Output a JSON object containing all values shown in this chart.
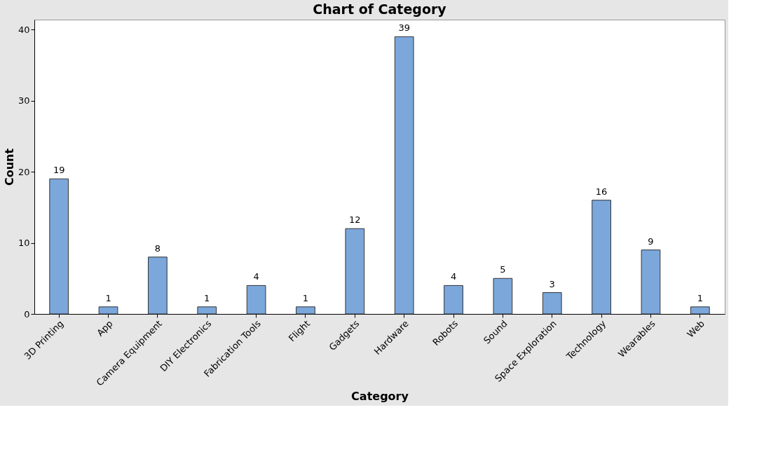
{
  "chart_data": {
    "type": "bar",
    "title": "Chart of Category",
    "xlabel": "Category",
    "ylabel": "Count",
    "categories": [
      "3D Printing",
      "App",
      "Camera Equipment",
      "DIY Electronics",
      "Fabrication Tools",
      "Flight",
      "Gadgets",
      "Hardware",
      "Robots",
      "Sound",
      "Space Exploration",
      "Technology",
      "Wearables",
      "Web"
    ],
    "values": [
      19,
      1,
      8,
      1,
      4,
      1,
      12,
      39,
      4,
      5,
      3,
      16,
      9,
      1
    ],
    "color": "#7ba7db",
    "ylim": [
      0,
      41.4
    ],
    "yticks": [
      0,
      10,
      20,
      30,
      40
    ],
    "data_labels": true
  }
}
